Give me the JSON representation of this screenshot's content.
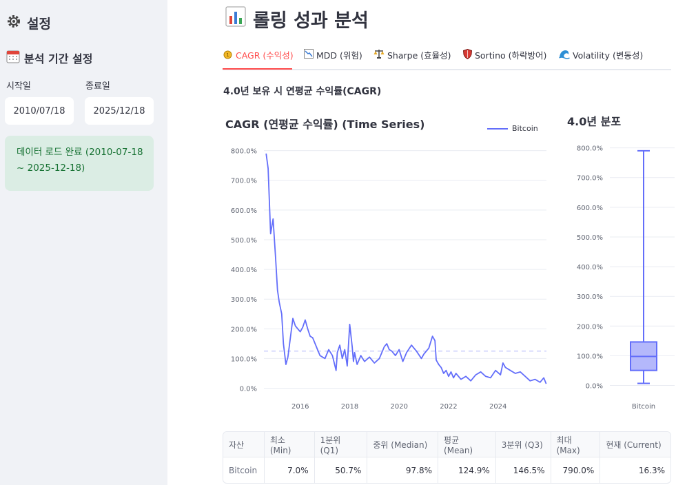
{
  "sidebar": {
    "title": "설정",
    "period_heading": "분석 기간 설정",
    "start_label": "시작일",
    "end_label": "종료일",
    "start_value": "2010/07/18",
    "end_value": "2025/12/18",
    "status": "데이터 로드 완료 (2010-07-18 ~ 2025-12-18)"
  },
  "main": {
    "title": "롤링 성과 분석",
    "tabs": [
      {
        "label": "CAGR (수익성)",
        "icon": "medal-icon",
        "active": true
      },
      {
        "label": "MDD (위험)",
        "icon": "chart-down-icon",
        "active": false
      },
      {
        "label": "Sharpe (효율성)",
        "icon": "scales-icon",
        "active": false
      },
      {
        "label": "Sortino (하락방어)",
        "icon": "shield-icon",
        "active": false
      },
      {
        "label": "Volatility (변동성)",
        "icon": "wave-icon",
        "active": false
      }
    ],
    "section_title": "4.0년 보유 시 연평균 수익률(CAGR)",
    "ts_chart_title": "CAGR (연평균 수익률) (Time Series)",
    "dist_chart_title": "4.0년 분포"
  },
  "chart_data": [
    {
      "type": "line",
      "title": "CAGR (연평균 수익률) (Time Series)",
      "x_ticks": [
        "2016",
        "2018",
        "2020",
        "2022",
        "2024"
      ],
      "y_ticks": [
        "0.0%",
        "100.0%",
        "200.0%",
        "300.0%",
        "400.0%",
        "500.0%",
        "600.0%",
        "700.0%",
        "800.0%"
      ],
      "ylim": [
        -15,
        820
      ],
      "xlim": [
        2014.53,
        2025.96
      ],
      "mean_line": 124.9,
      "series": [
        {
          "name": "Bitcoin",
          "color": "#636efa",
          "x": [
            2014.62,
            2014.7,
            2014.8,
            2014.9,
            2015.0,
            2015.08,
            2015.15,
            2015.25,
            2015.32,
            2015.42,
            2015.5,
            2015.6,
            2015.7,
            2015.8,
            2015.9,
            2016.0,
            2016.1,
            2016.2,
            2016.3,
            2016.4,
            2016.5,
            2016.6,
            2016.7,
            2016.8,
            2016.9,
            2017.0,
            2017.15,
            2017.3,
            2017.45,
            2017.5,
            2017.6,
            2017.7,
            2017.8,
            2017.9,
            2018.0,
            2018.1,
            2018.15,
            2018.2,
            2018.3,
            2018.45,
            2018.6,
            2018.8,
            2019.0,
            2019.2,
            2019.4,
            2019.5,
            2019.6,
            2019.7,
            2019.85,
            2020.0,
            2020.15,
            2020.3,
            2020.5,
            2020.7,
            2020.9,
            2021.0,
            2021.2,
            2021.35,
            2021.45,
            2021.5,
            2021.6,
            2021.7,
            2021.8,
            2021.9,
            2022.0,
            2022.1,
            2022.2,
            2022.3,
            2022.5,
            2022.7,
            2022.9,
            2023.1,
            2023.3,
            2023.5,
            2023.7,
            2023.9,
            2024.1,
            2024.2,
            2024.3,
            2024.5,
            2024.7,
            2024.9,
            2025.1,
            2025.3,
            2025.5,
            2025.7,
            2025.85,
            2025.95
          ],
          "y": [
            790,
            740,
            520,
            570,
            440,
            330,
            290,
            250,
            150,
            80,
            105,
            170,
            235,
            210,
            200,
            190,
            205,
            230,
            200,
            175,
            170,
            150,
            130,
            110,
            105,
            100,
            130,
            110,
            60,
            120,
            145,
            100,
            130,
            75,
            215,
            140,
            90,
            120,
            80,
            110,
            90,
            105,
            85,
            100,
            140,
            150,
            130,
            125,
            110,
            130,
            90,
            120,
            145,
            125,
            100,
            115,
            135,
            175,
            160,
            95,
            80,
            70,
            50,
            60,
            40,
            55,
            35,
            50,
            30,
            40,
            25,
            45,
            55,
            40,
            35,
            60,
            45,
            85,
            70,
            60,
            50,
            55,
            40,
            25,
            30,
            20,
            35,
            15
          ]
        }
      ]
    },
    {
      "type": "box",
      "title": "4.0년 분포",
      "categories": [
        "Bitcoin"
      ],
      "y_ticks": [
        "0.0%",
        "100.0%",
        "200.0%",
        "300.0%",
        "400.0%",
        "500.0%",
        "600.0%",
        "700.0%",
        "800.0%"
      ],
      "ylim": [
        -15,
        820
      ],
      "series": [
        {
          "name": "Bitcoin",
          "min": 7.0,
          "q1": 50.7,
          "median": 97.8,
          "q3": 146.5,
          "max": 790.0,
          "color": "#636efa"
        }
      ]
    }
  ],
  "table": {
    "headers": [
      "자산",
      "최소 (Min)",
      "1분위 (Q1)",
      "중위 (Median)",
      "평균 (Mean)",
      "3분위 (Q3)",
      "최대 (Max)",
      "현재 (Current)"
    ],
    "rows": [
      [
        "Bitcoin",
        "7.0%",
        "50.7%",
        "97.8%",
        "124.9%",
        "146.5%",
        "790.0%",
        "16.3%"
      ]
    ]
  }
}
